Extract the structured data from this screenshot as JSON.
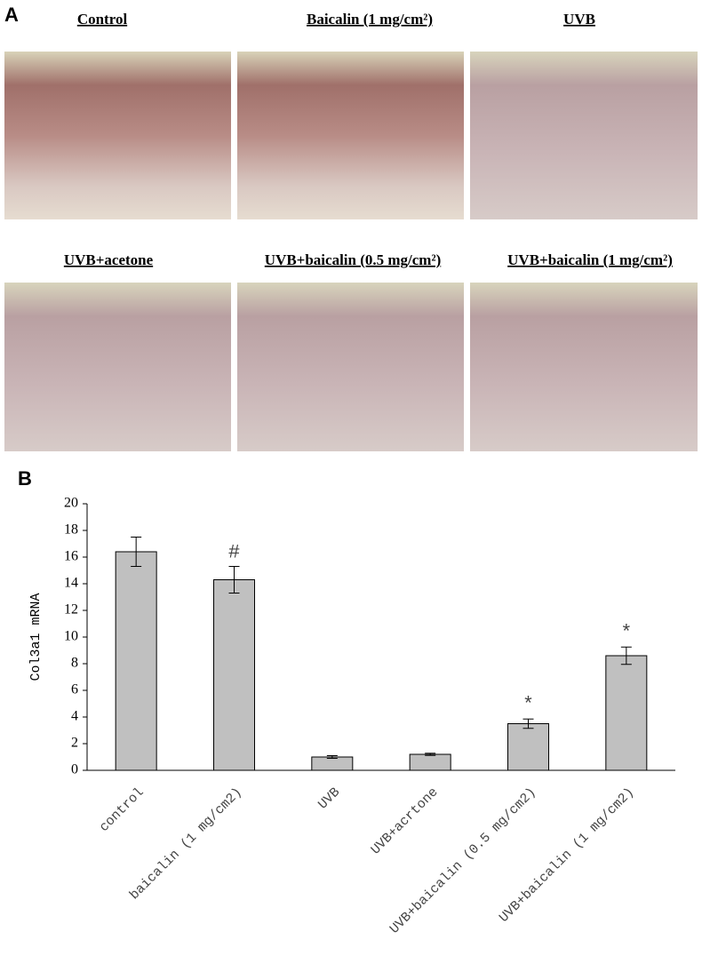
{
  "panel_a": {
    "label": "A",
    "images": [
      {
        "title": "Control"
      },
      {
        "title": "Baicalin (1 mg/cm²)"
      },
      {
        "title": "UVB"
      },
      {
        "title": "UVB+acetone"
      },
      {
        "title": "UVB+baicalin (0.5 mg/cm²)"
      },
      {
        "title": "UVB+baicalin (1 mg/cm²)"
      }
    ]
  },
  "chart_data": {
    "type": "bar",
    "panel_label": "B",
    "ylabel": "Col3a1 mRNA",
    "categories": [
      "control",
      "baicalin (1 mg/cm2)",
      "UVB",
      "UVB+acrtone",
      "UVB+baicalin (0.5 mg/cm2)",
      "UVB+baicalin (1 mg/cm2)"
    ],
    "values": [
      16.4,
      14.3,
      1.0,
      1.2,
      3.5,
      8.6
    ],
    "errors": [
      1.1,
      1.0,
      0.1,
      0.08,
      0.35,
      0.65
    ],
    "significance": [
      null,
      "#",
      null,
      null,
      "*",
      "*"
    ],
    "color": "#c0c0c0",
    "ylim": [
      0,
      20
    ],
    "yticks": [
      0,
      2,
      4,
      6,
      8,
      10,
      12,
      14,
      16,
      18,
      20
    ],
    "grid": false
  }
}
